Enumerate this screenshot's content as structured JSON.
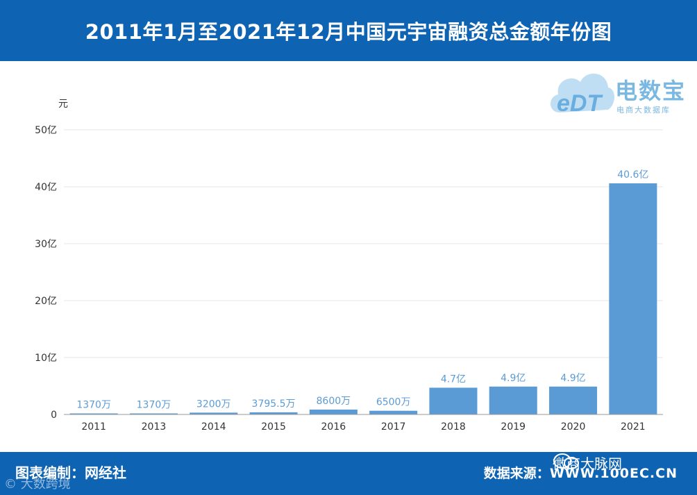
{
  "header": {
    "title": "2011年1月至2021年12月中国元宇宙融资总金额年份图"
  },
  "footer": {
    "credit_label": "图表编制：",
    "credit_value": "网经社",
    "source_label": "数据来源：",
    "source_value": "WWW.100EC.CN"
  },
  "logo": {
    "name": "电数宝",
    "subtitle": "电商大数据库",
    "mark": "eDT"
  },
  "watermarks": {
    "left": "© 大数跨境",
    "right": "微商大脉网"
  },
  "colors": {
    "bar": "#5b9bd5",
    "header_bg": "#0e63b2",
    "label": "#5b9bd5"
  },
  "chart_data": {
    "type": "bar",
    "title": "2011年1月至2021年12月中国元宇宙融资总金额年份图",
    "ylabel": "元",
    "xlabel": "",
    "ylim": [
      0,
      50
    ],
    "y_unit": "亿元",
    "y_ticks": [
      0,
      10,
      20,
      30,
      40,
      50
    ],
    "y_tick_labels": [
      "0",
      "10亿",
      "20亿",
      "30亿",
      "40亿",
      "50亿"
    ],
    "categories": [
      "2011",
      "2013",
      "2014",
      "2015",
      "2016",
      "2017",
      "2018",
      "2019",
      "2020",
      "2021"
    ],
    "values": [
      0.137,
      0.137,
      0.32,
      0.37955,
      0.86,
      0.65,
      4.7,
      4.9,
      4.9,
      40.6
    ],
    "data_labels": [
      "1370万",
      "1370万",
      "3200万",
      "3795.5万",
      "8600万",
      "6500万",
      "4.7亿",
      "4.9亿",
      "4.9亿",
      "40.6亿"
    ],
    "grid": true,
    "legend": "none"
  }
}
